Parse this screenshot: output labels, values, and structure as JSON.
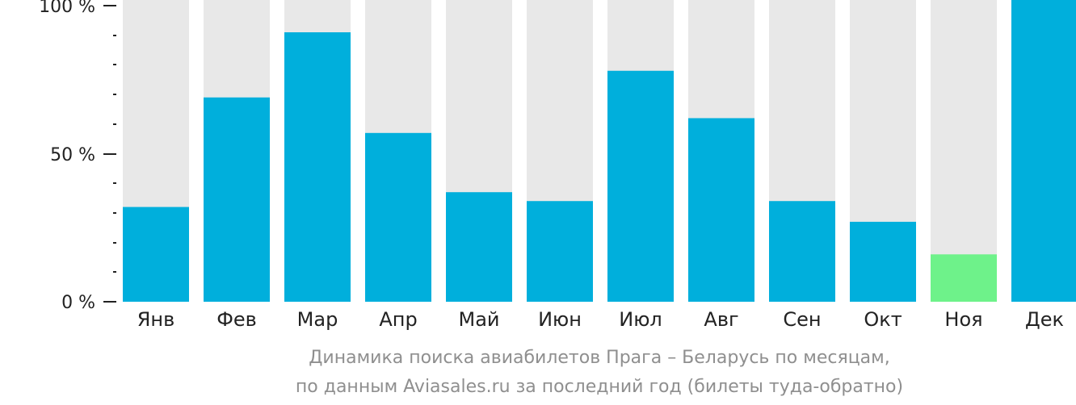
{
  "chart_data": {
    "type": "bar",
    "categories": [
      "Янв",
      "Фев",
      "Мар",
      "Апр",
      "Май",
      "Июн",
      "Июл",
      "Авг",
      "Сен",
      "Окт",
      "Ноя",
      "Дек"
    ],
    "values": [
      32,
      69,
      91,
      57,
      37,
      34,
      78,
      62,
      34,
      27,
      16,
      100
    ],
    "highlight_index": 10,
    "y_ticks": [
      "0 %",
      "50 %",
      "100 %"
    ],
    "ylim": [
      0,
      100
    ],
    "grid": false,
    "colors": {
      "bar": "#00afdc",
      "highlight": "#6ef28a",
      "track": "#e8e8e8",
      "axis": "#222222",
      "caption": "#8f8f8f"
    }
  },
  "caption": {
    "line1": "Динамика поиска авиабилетов Прага – Беларусь по месяцам,",
    "line2": "по данным Aviasales.ru за последний год (билеты туда-обратно)"
  }
}
